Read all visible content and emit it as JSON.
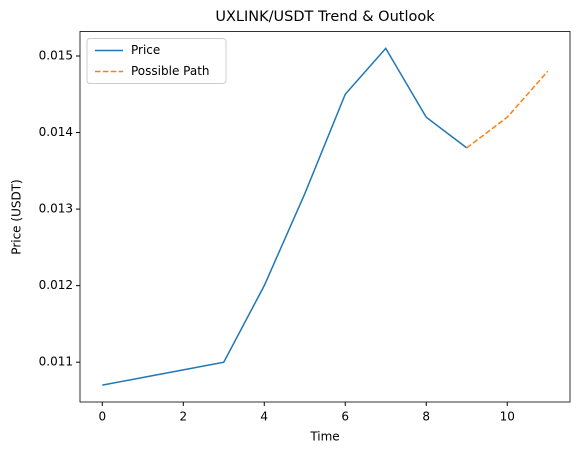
{
  "chart_data": {
    "type": "line",
    "title": "UXLINK/USDT Trend & Outlook",
    "x_label": "Time",
    "y_label": "Price (USDT)",
    "series": [
      {
        "name": "Price",
        "color": "#1f77b4",
        "dash": false,
        "x": [
          0,
          1,
          2,
          3,
          4,
          5,
          6,
          7,
          8,
          9
        ],
        "values": [
          0.0107,
          0.0108,
          0.0109,
          0.011,
          0.012,
          0.0132,
          0.0145,
          0.0151,
          0.0142,
          0.0138
        ]
      },
      {
        "name": "Possible Path",
        "color": "#ff7f0e",
        "dash": true,
        "x": [
          9,
          10,
          11
        ],
        "values": [
          0.0138,
          0.0142,
          0.0148
        ]
      }
    ],
    "xlim": [
      -0.55,
      11.55
    ],
    "xticks": [
      0,
      2,
      4,
      6,
      8,
      10
    ],
    "ylim": [
      0.01048,
      0.01532
    ],
    "yticks": [
      0.011,
      0.012,
      0.013,
      0.014,
      0.015
    ],
    "grid": false,
    "legend": "upper left"
  }
}
